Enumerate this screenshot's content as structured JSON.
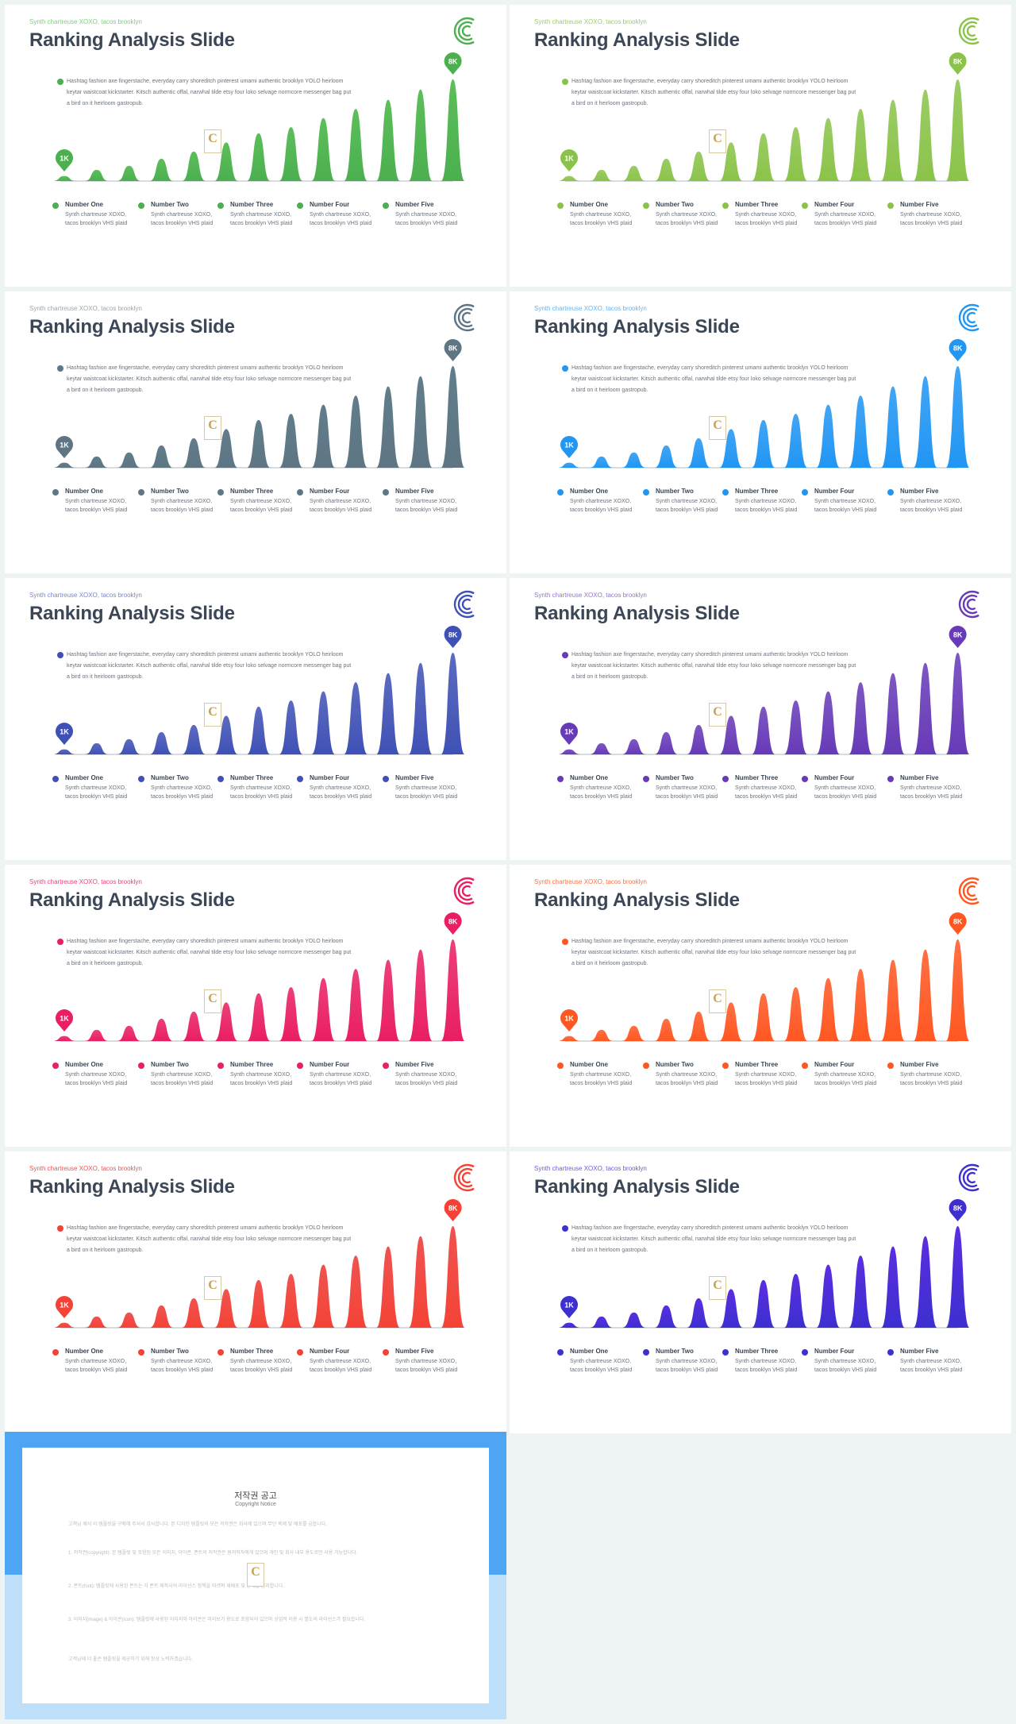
{
  "slide": {
    "subtitle": "Synth chartreuse XOXO, tacos brooklyn",
    "title": "Ranking Analysis Slide",
    "description": "Hashtag fashion axe fingerstache, everyday carry shoreditch pinterest umami authentic brooklyn YOLO heirloom keytar waistcoat kickstarter. Kitsch authentic offal, narwhal tilde etsy four loko selvage normcore messenger bag put a bird on it heirloom gastropub.",
    "pin_low": "1K",
    "pin_high": "8K",
    "watermark_letter": "C",
    "legend": [
      {
        "title": "Number One",
        "text": "Synth chartreuse XOXO, tacos brooklyn VHS plaid"
      },
      {
        "title": "Number Two",
        "text": "Synth chartreuse XOXO, tacos brooklyn VHS plaid"
      },
      {
        "title": "Number Three",
        "text": "Synth chartreuse XOXO, tacos brooklyn VHS plaid"
      },
      {
        "title": "Number Four",
        "text": "Synth chartreuse XOXO, tacos brooklyn VHS plaid"
      },
      {
        "title": "Number Five",
        "text": "Synth chartreuse XOXO, tacos brooklyn VHS plaid"
      }
    ]
  },
  "peaks": [
    0.05,
    0.11,
    0.15,
    0.22,
    0.29,
    0.38,
    0.47,
    0.53,
    0.62,
    0.71,
    0.8,
    0.9,
    1.0
  ],
  "variants": [
    {
      "color": "#4caf50",
      "top": "#5cbf5a",
      "sub_color": "#7ccf7a"
    },
    {
      "color": "#8bc34a",
      "top": "#9ccc65",
      "sub_color": "#9ccc65"
    },
    {
      "color": "#5f7584",
      "top": "#607d8b",
      "sub_color": "#9aa6ae"
    },
    {
      "color": "#2196f3",
      "top": "#42a5f5",
      "sub_color": "#64b5f6"
    },
    {
      "color": "#3f51b5",
      "top": "#5c6bc0",
      "sub_color": "#7986cb"
    },
    {
      "color": "#673ab7",
      "top": "#7e57c2",
      "sub_color": "#9575cd"
    },
    {
      "color": "#e91e63",
      "top": "#ec407a",
      "sub_color": "#ec407a"
    },
    {
      "color": "#ff5722",
      "top": "#ff7043",
      "sub_color": "#ff7043"
    },
    {
      "color": "#f44336",
      "top": "#ef5350",
      "sub_color": "#ef5350"
    },
    {
      "color": "#3d2fd0",
      "top": "#5b2ee0",
      "sub_color": "#6a5ae0"
    }
  ],
  "copyright": {
    "title": "저작권 공고",
    "subtitle": "Copyright Notice",
    "para1": "고객님 께서 이 템플릿을 구매해 주셔서 감사합니다. 본 디자인 템플릿의 모든 저작권은 회사에 있으며 무단 복제 및 배포를 금합니다.",
    "para2": "1. 저작권(copyright): 본 템플릿 및 포함된 모든 이미지, 아이콘, 폰트의 저작권은 원저작자에게 있으며 개인 및 회사 내부 용도로만 사용 가능합니다.",
    "para3": "2. 폰트(font): 템플릿에 사용된 폰트는 각 폰트 제작사의 라이선스 정책을 따르며 재배포 및 판매를 금지합니다.",
    "para4": "3. 이미지(image) & 아이콘(icon): 템플릿에 사용된 이미지와 아이콘은 미리보기 용도로 포함되어 있으며 상업적 이용 시 별도의 라이선스가 필요합니다.",
    "para5": "고객님께 더 좋은 템플릿을 제공하기 위해 항상 노력하겠습니다."
  }
}
